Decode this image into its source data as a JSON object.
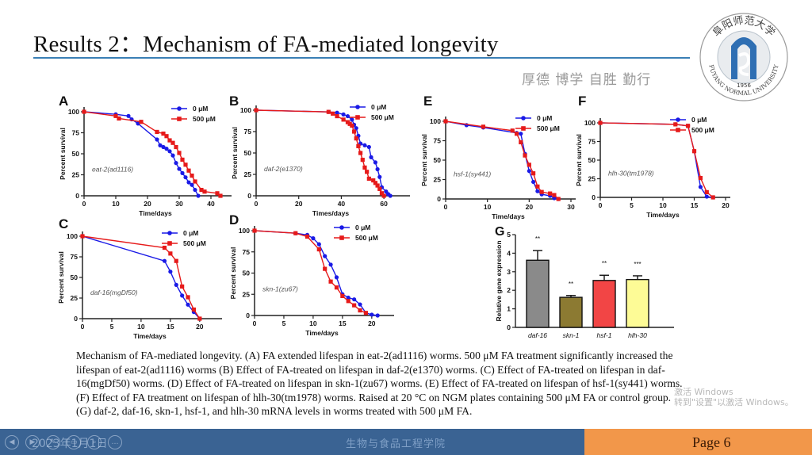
{
  "slide": {
    "title": "Results 2：Mechanism of FA-mediated longevity",
    "motto": "厚德 博学 自胜 勤行",
    "logo": {
      "name": "Fuyang Normal University seal",
      "top_text": "阜阳师范大学",
      "bottom_text": "FUYANG NORMAL UNIVERSITY",
      "year": "1956"
    },
    "colors": {
      "accent_rule": "#3a7fb5",
      "footer_blue": "#3a6393",
      "footer_orange": "#f2974a",
      "series_0uM": "#1a1ae6",
      "series_500uM": "#e61a1a"
    }
  },
  "caption": {
    "lines": [
      "Mechanism of FA-mediated longevity. (A) FA extended lifespan in eat-2(ad1116) worms. 500 μM FA treatment significantly increased the",
      "lifespan of eat-2(ad1116) worms (B) Effect of FA-treated on lifespan in daf-2(e1370) worms. (C) Effect of FA-treated on lifespan in daf-",
      "16(mgDf50) worms. (D) Effect of FA-treated on lifespan in skn-1(zu67) worms. (E) Effect of FA-treated on lifespan of hsf-1(sy441) worms.",
      "(F) Effect of FA treatment on lifespan of hlh-30(tm1978) worms. Raised at 20 °C on NGM plates containing 500 μM FA or control group.",
      "(G) daf-2, daf-16, skn-1, hsf-1, and hlh-30 mRNA levels in worms treated with 500 μM FA."
    ]
  },
  "watermark": {
    "line1": "激活 Windows",
    "line2": "转到\"设置\"以激活 Windows。"
  },
  "footer": {
    "date": "2023年1月1日",
    "school": "生物与食品工程学院",
    "page": "Page 6",
    "nav_icons": [
      "prev-icon",
      "next-icon",
      "pen-icon",
      "slides-icon",
      "zoom-icon",
      "more-icon"
    ],
    "nav_glyphs": [
      "◀",
      "▶",
      "✎",
      "▭",
      "⌕",
      "…"
    ]
  },
  "chart_data": [
    {
      "id": "A",
      "type": "line",
      "annotation": "eat-2(ad1116)",
      "xlabel": "Time/days",
      "ylabel": "Percent survival",
      "xlim": [
        0,
        45
      ],
      "ylim": [
        0,
        100
      ],
      "xticks": [
        0,
        10,
        20,
        30,
        40
      ],
      "yticks": [
        0,
        25,
        50,
        75,
        100
      ],
      "legend": "top-right",
      "series": [
        {
          "name": "0 μM",
          "color": "#1a1ae6",
          "marker": "circle",
          "x": [
            0,
            10,
            14,
            15,
            17,
            23,
            24,
            25,
            26,
            27,
            28,
            29,
            30,
            31,
            32,
            33,
            34,
            35,
            36
          ],
          "y": [
            100,
            97,
            95,
            91,
            86,
            67,
            60,
            58,
            56,
            53,
            48,
            39,
            32,
            27,
            22,
            16,
            13,
            7,
            0
          ]
        },
        {
          "name": "500 μM",
          "color": "#e61a1a",
          "marker": "square",
          "x": [
            0,
            10,
            11,
            18,
            23,
            25,
            26,
            27,
            28,
            29,
            30,
            31,
            32,
            33,
            34,
            35,
            37,
            38,
            42,
            43
          ],
          "y": [
            100,
            95,
            92,
            88,
            76,
            74,
            71,
            66,
            63,
            58,
            51,
            43,
            37,
            30,
            24,
            17,
            7,
            5,
            3,
            0
          ]
        }
      ]
    },
    {
      "id": "B",
      "type": "line",
      "annotation": "daf-2(e1370)",
      "xlabel": "Times/days",
      "ylabel": "Percent survival",
      "xlim": [
        0,
        70
      ],
      "ylim": [
        0,
        100
      ],
      "xticks": [
        0,
        20,
        40,
        60
      ],
      "yticks": [
        0,
        25,
        50,
        75,
        100
      ],
      "legend": "top-right",
      "series": [
        {
          "name": "0 μM",
          "color": "#1a1ae6",
          "marker": "circle",
          "x": [
            0,
            34,
            38,
            41,
            43,
            45,
            46,
            47,
            48,
            49,
            51,
            53,
            54,
            56,
            57,
            58,
            59,
            61,
            62,
            63
          ],
          "y": [
            100,
            98,
            97,
            95,
            93,
            89,
            83,
            79,
            70,
            61,
            59,
            57,
            45,
            39,
            31,
            22,
            10,
            5,
            2,
            0
          ]
        },
        {
          "name": "500 μM",
          "color": "#e61a1a",
          "marker": "square",
          "x": [
            0,
            34,
            36,
            38,
            41,
            43,
            44,
            45,
            46,
            47,
            48,
            49,
            50,
            51,
            52,
            53,
            55,
            56,
            57,
            58,
            59,
            60
          ],
          "y": [
            100,
            98,
            96,
            93,
            89,
            86,
            84,
            82,
            75,
            67,
            58,
            50,
            42,
            33,
            28,
            20,
            18,
            15,
            12,
            8,
            3,
            0
          ]
        }
      ]
    },
    {
      "id": "C",
      "type": "line",
      "annotation": "daf-16(mgDf50)",
      "xlabel": "Time/days",
      "ylabel": "Percent survival",
      "xlim": [
        0,
        23
      ],
      "ylim": [
        0,
        100
      ],
      "xticks": [
        0,
        5,
        10,
        15,
        20
      ],
      "yticks": [
        0,
        25,
        50,
        75,
        100
      ],
      "legend": "top-right",
      "series": [
        {
          "name": "0 μM",
          "color": "#1a1ae6",
          "marker": "circle",
          "x": [
            0,
            14,
            15,
            16,
            17,
            18,
            19,
            20
          ],
          "y": [
            100,
            70,
            57,
            41,
            28,
            17,
            8,
            0
          ]
        },
        {
          "name": "500 μM",
          "color": "#e61a1a",
          "marker": "square",
          "x": [
            0,
            14,
            15,
            16,
            17,
            18,
            19,
            20
          ],
          "y": [
            100,
            86,
            79,
            70,
            39,
            26,
            11,
            0
          ]
        }
      ]
    },
    {
      "id": "D",
      "type": "line",
      "annotation": "skn-1(zu67)",
      "xlabel": "Time/days",
      "ylabel": "Percent survival",
      "xlim": [
        0,
        23
      ],
      "ylim": [
        0,
        100
      ],
      "xticks": [
        0,
        5,
        10,
        15,
        20
      ],
      "yticks": [
        0,
        25,
        50,
        75,
        100
      ],
      "legend": "top-right",
      "series": [
        {
          "name": "0 μM",
          "color": "#1a1ae6",
          "marker": "circle",
          "x": [
            0,
            7,
            9,
            10,
            11,
            12,
            13,
            14,
            15,
            16,
            17,
            18,
            19,
            20,
            21
          ],
          "y": [
            100,
            97,
            95,
            91,
            84,
            70,
            60,
            45,
            25,
            21,
            19,
            13,
            3,
            1,
            0
          ]
        },
        {
          "name": "500 μM",
          "color": "#e61a1a",
          "marker": "square",
          "x": [
            0,
            7,
            9,
            11,
            12,
            13,
            14,
            15,
            16,
            17,
            18,
            19
          ],
          "y": [
            100,
            97,
            93,
            78,
            55,
            40,
            33,
            23,
            17,
            12,
            6,
            3
          ]
        }
      ]
    },
    {
      "id": "E",
      "type": "line",
      "annotation": "hsf-1(sy441)",
      "xlabel": "Time/days",
      "ylabel": "Percent survival",
      "xlim": [
        0,
        30
      ],
      "ylim": [
        0,
        100
      ],
      "xticks": [
        0,
        10,
        20,
        30
      ],
      "yticks": [
        0,
        25,
        50,
        75,
        100
      ],
      "legend": "top-right",
      "series": [
        {
          "name": "0 μM",
          "color": "#1a1ae6",
          "marker": "circle",
          "x": [
            0,
            5,
            9,
            17,
            18,
            19,
            20,
            21,
            22,
            23,
            25,
            26,
            27
          ],
          "y": [
            100,
            95,
            92,
            85,
            84,
            58,
            36,
            22,
            10,
            6,
            4,
            1,
            0
          ]
        },
        {
          "name": "500 μM",
          "color": "#e61a1a",
          "marker": "square",
          "x": [
            0,
            9,
            16,
            17,
            18,
            19,
            20,
            21,
            22,
            23,
            25,
            26,
            27
          ],
          "y": [
            100,
            93,
            88,
            84,
            73,
            56,
            44,
            33,
            16,
            9,
            7,
            5,
            0
          ]
        }
      ]
    },
    {
      "id": "F",
      "type": "line",
      "annotation": "hlh-30(tm1978)",
      "xlabel": "Time/days",
      "ylabel": "Percent survival",
      "xlim": [
        0,
        20
      ],
      "ylim": [
        0,
        100
      ],
      "xticks": [
        0,
        5,
        10,
        15,
        20
      ],
      "yticks": [
        0,
        25,
        50,
        75,
        100
      ],
      "legend": "top-right",
      "series": [
        {
          "name": "0 μM",
          "color": "#1a1ae6",
          "marker": "circle",
          "x": [
            0,
            12,
            14,
            15,
            16,
            17,
            18
          ],
          "y": [
            100,
            98,
            96,
            62,
            14,
            1,
            0
          ]
        },
        {
          "name": "500 μM",
          "color": "#e61a1a",
          "marker": "square",
          "x": [
            0,
            12,
            14,
            15,
            16,
            17,
            18
          ],
          "y": [
            100,
            98,
            96,
            62,
            26,
            7,
            0
          ]
        }
      ]
    },
    {
      "id": "G",
      "type": "bar",
      "ylabel": "Relative gene expression",
      "xlabel": "",
      "ylim": [
        0,
        5
      ],
      "yticks": [
        0,
        1,
        2,
        3,
        4,
        5
      ],
      "categories": [
        "daf-16",
        "skn-1",
        "hsf-1",
        "hlh-30"
      ],
      "values": [
        3.62,
        1.62,
        2.53,
        2.58
      ],
      "errors": [
        0.52,
        0.1,
        0.28,
        0.2
      ],
      "significance": [
        "**",
        "**",
        "**",
        "***"
      ],
      "colors": [
        "#8a8a8a",
        "#8c7a32",
        "#f24545",
        "#fdfb96"
      ]
    }
  ]
}
